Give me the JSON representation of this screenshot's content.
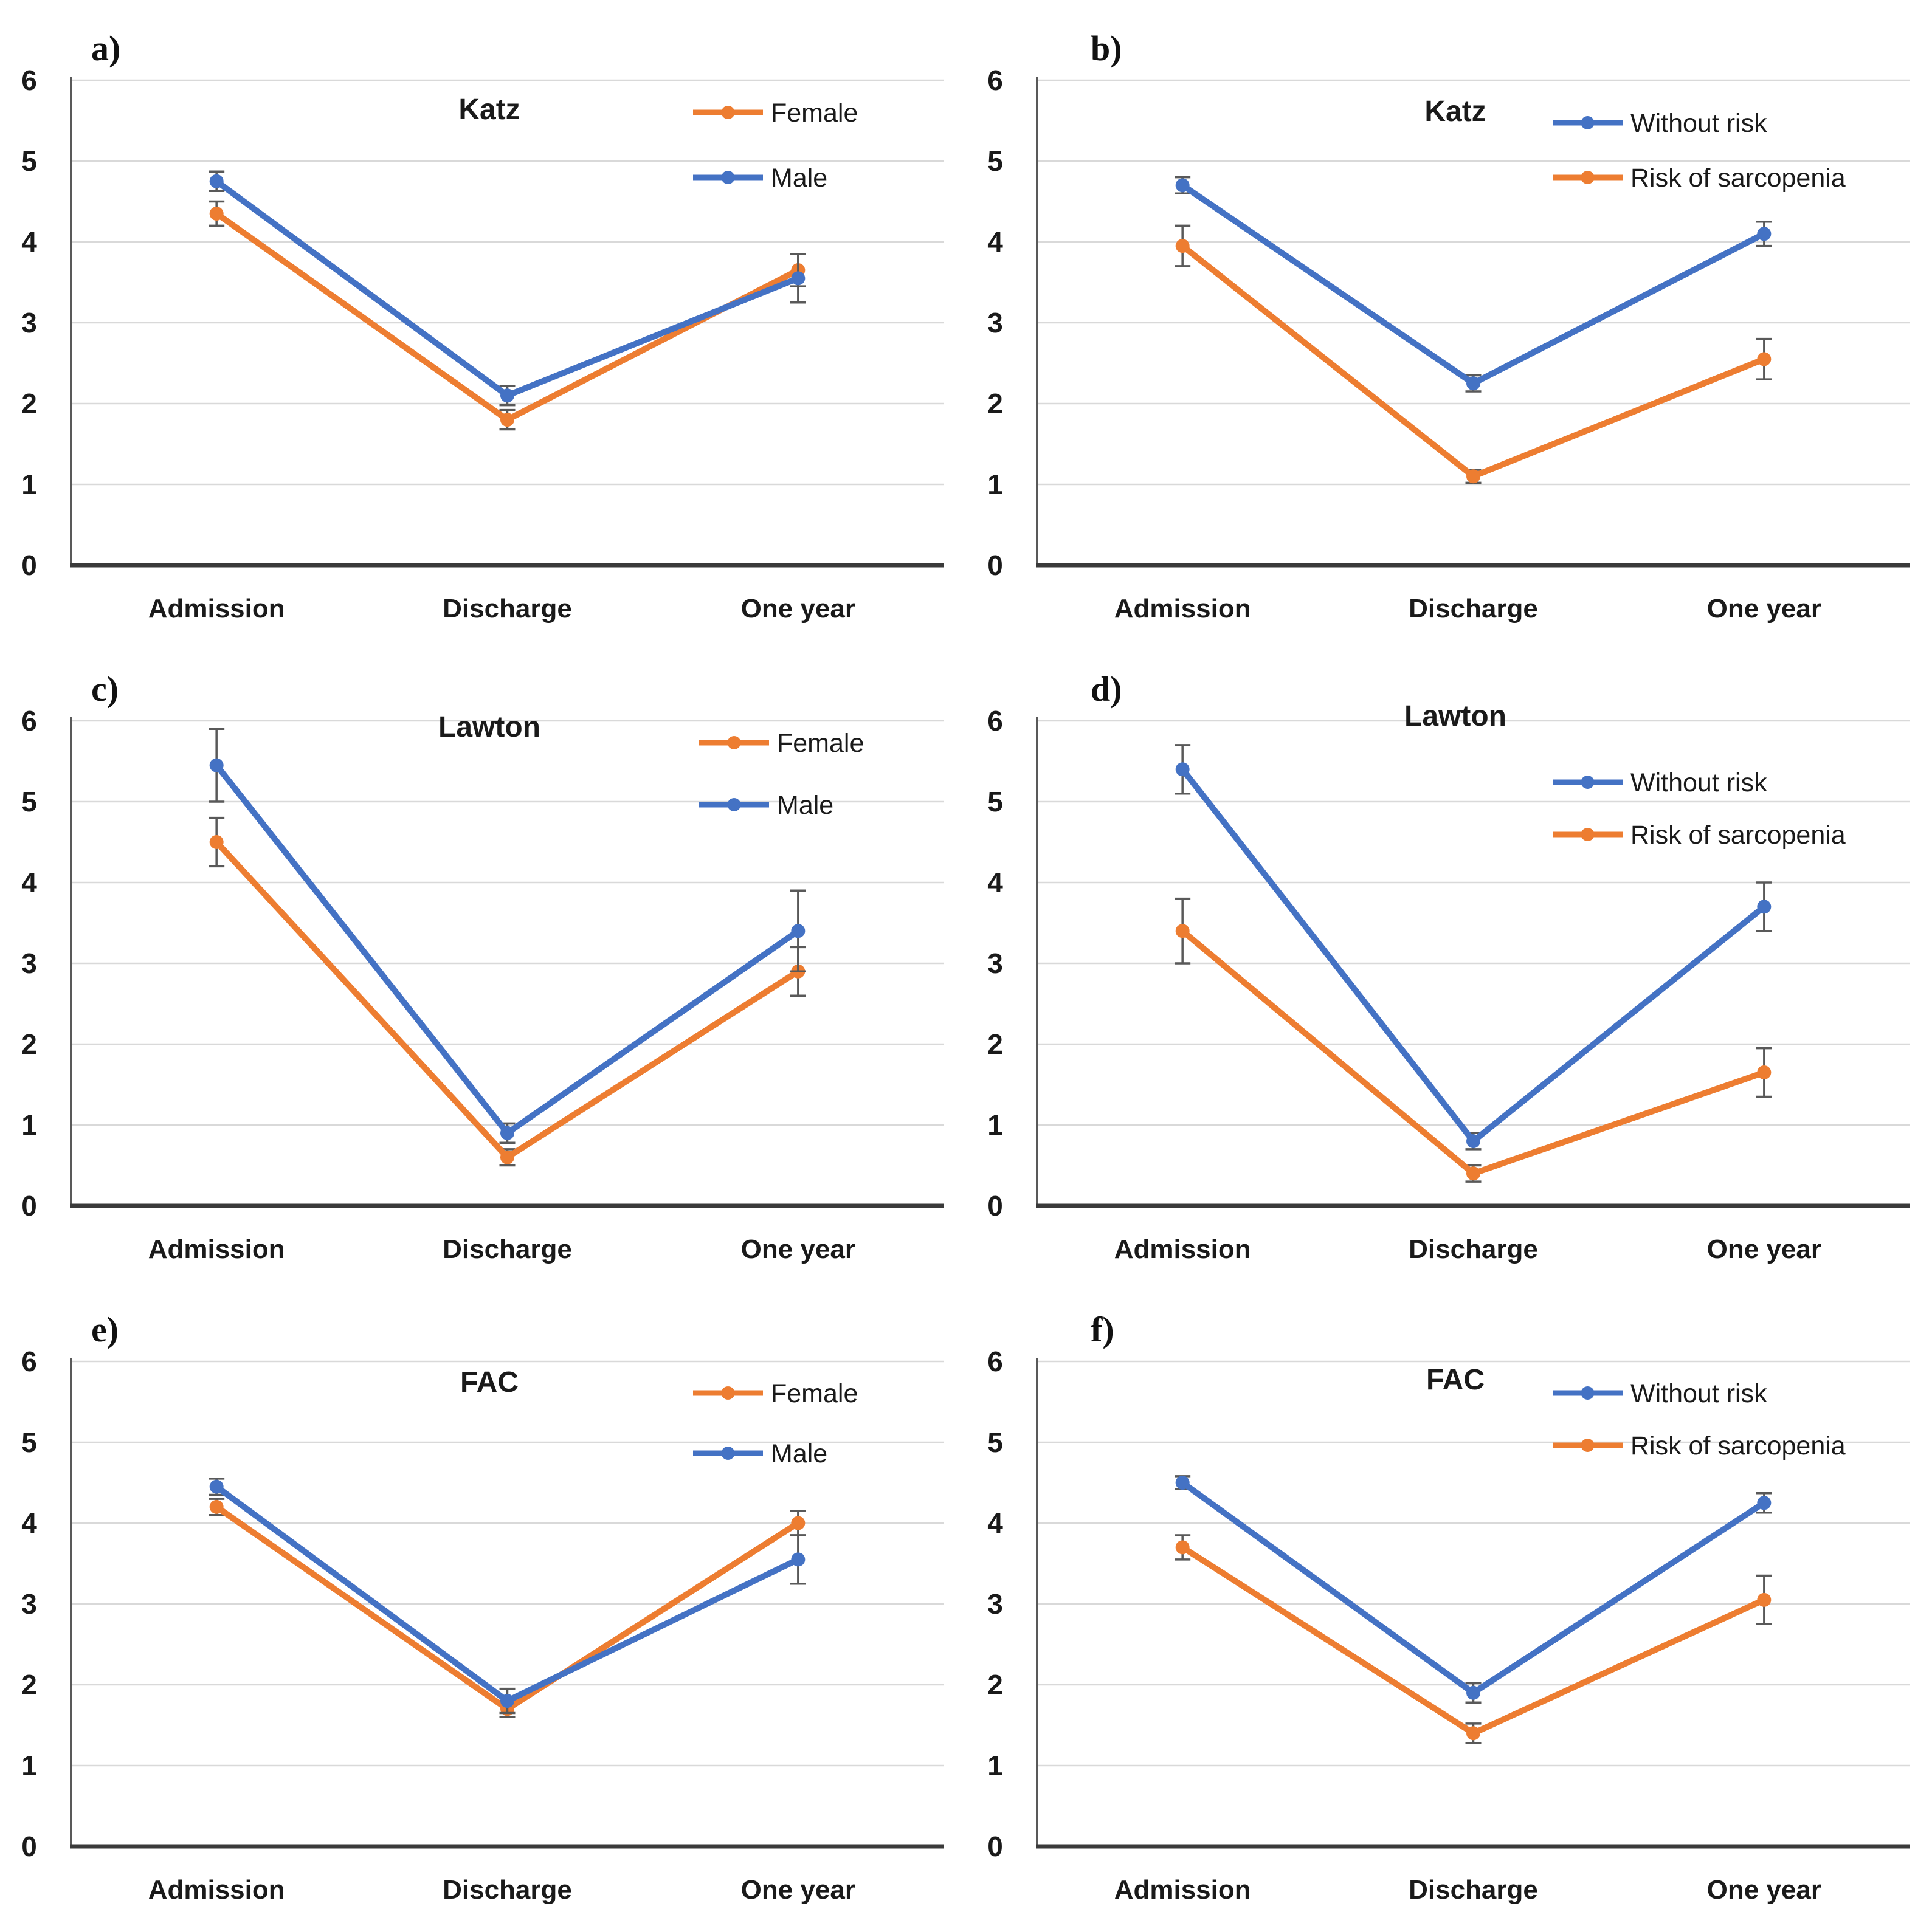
{
  "figure": {
    "description": "Six line charts (a-f) of functional scores at Admission, Discharge and One year",
    "panel_labels": [
      "a)",
      "b)",
      "c)",
      "d)",
      "e)",
      "f)"
    ]
  },
  "palette": {
    "orange": "#ED7D31",
    "blue": "#4472C4",
    "error_bar": "#595959",
    "gridline": "#D9D9D9",
    "axis_left": "#595959",
    "axis_bottom": "#3A3A3A",
    "text": "#1A1A1A",
    "background": "#FFFFFF"
  },
  "chart_data": [
    {
      "id": "a",
      "panel_label": "a)",
      "type": "line",
      "title": "Katz",
      "categories": [
        "Admission",
        "Discharge",
        "One year"
      ],
      "ylim": [
        0,
        6
      ],
      "yticks": [
        0,
        1,
        2,
        3,
        4,
        5,
        6
      ],
      "grid": true,
      "legend_position": "top-right",
      "series": [
        {
          "name": "Female",
          "color": "#ED7D31",
          "values": [
            4.35,
            1.8,
            3.65
          ],
          "errors": [
            0.15,
            0.12,
            0.2
          ]
        },
        {
          "name": "Male",
          "color": "#4472C4",
          "values": [
            4.75,
            2.1,
            3.55
          ],
          "errors": [
            0.12,
            0.12,
            0.3
          ]
        }
      ]
    },
    {
      "id": "b",
      "panel_label": "b)",
      "type": "line",
      "title": "Katz",
      "categories": [
        "Admission",
        "Discharge",
        "One year"
      ],
      "ylim": [
        0,
        6
      ],
      "yticks": [
        0,
        1,
        2,
        3,
        4,
        5,
        6
      ],
      "grid": true,
      "legend_position": "top-right",
      "series": [
        {
          "name": "Without risk",
          "color": "#4472C4",
          "values": [
            4.7,
            2.25,
            4.1
          ],
          "errors": [
            0.1,
            0.1,
            0.15
          ]
        },
        {
          "name": "Risk of sarcopenia",
          "color": "#ED7D31",
          "values": [
            3.95,
            1.1,
            2.55
          ],
          "errors": [
            0.25,
            0.08,
            0.25
          ]
        }
      ]
    },
    {
      "id": "c",
      "panel_label": "c)",
      "type": "line",
      "title": "Lawton",
      "categories": [
        "Admission",
        "Discharge",
        "One year"
      ],
      "ylim": [
        0,
        6
      ],
      "yticks": [
        0,
        1,
        2,
        3,
        4,
        5,
        6
      ],
      "grid": true,
      "legend_position": "top-right",
      "series": [
        {
          "name": "Female",
          "color": "#ED7D31",
          "values": [
            4.5,
            0.6,
            2.9
          ],
          "errors": [
            0.3,
            0.1,
            0.3
          ]
        },
        {
          "name": "Male",
          "color": "#4472C4",
          "values": [
            5.45,
            0.9,
            3.4
          ],
          "errors": [
            0.45,
            0.12,
            0.5
          ]
        }
      ]
    },
    {
      "id": "d",
      "panel_label": "d)",
      "type": "line",
      "title": "Lawton",
      "categories": [
        "Admission",
        "Discharge",
        "One year"
      ],
      "ylim": [
        0,
        6
      ],
      "yticks": [
        0,
        1,
        2,
        3,
        4,
        5,
        6
      ],
      "grid": true,
      "legend_position": "top-right",
      "series": [
        {
          "name": "Without risk",
          "color": "#4472C4",
          "values": [
            5.4,
            0.8,
            3.7
          ],
          "errors": [
            0.3,
            0.1,
            0.3
          ]
        },
        {
          "name": "Risk of sarcopenia",
          "color": "#ED7D31",
          "values": [
            3.4,
            0.4,
            1.65
          ],
          "errors": [
            0.4,
            0.1,
            0.3
          ]
        }
      ]
    },
    {
      "id": "e",
      "panel_label": "e)",
      "type": "line",
      "title": "FAC",
      "categories": [
        "Admission",
        "Discharge",
        "One year"
      ],
      "ylim": [
        0,
        6
      ],
      "yticks": [
        0,
        1,
        2,
        3,
        4,
        5,
        6
      ],
      "grid": true,
      "legend_position": "top-right",
      "series": [
        {
          "name": "Female",
          "color": "#ED7D31",
          "values": [
            4.2,
            1.7,
            4.0
          ],
          "errors": [
            0.1,
            0.1,
            0.15
          ]
        },
        {
          "name": "Male",
          "color": "#4472C4",
          "values": [
            4.45,
            1.8,
            3.55
          ],
          "errors": [
            0.1,
            0.15,
            0.3
          ]
        }
      ]
    },
    {
      "id": "f",
      "panel_label": "f)",
      "type": "line",
      "title": "FAC",
      "categories": [
        "Admission",
        "Discharge",
        "One year"
      ],
      "ylim": [
        0,
        6
      ],
      "yticks": [
        0,
        1,
        2,
        3,
        4,
        5,
        6
      ],
      "grid": true,
      "legend_position": "top-right",
      "series": [
        {
          "name": "Without risk",
          "color": "#4472C4",
          "values": [
            4.5,
            1.9,
            4.25
          ],
          "errors": [
            0.08,
            0.12,
            0.12
          ]
        },
        {
          "name": "Risk of sarcopenia",
          "color": "#ED7D31",
          "values": [
            3.7,
            1.4,
            3.05
          ],
          "errors": [
            0.15,
            0.12,
            0.3
          ]
        }
      ]
    }
  ]
}
